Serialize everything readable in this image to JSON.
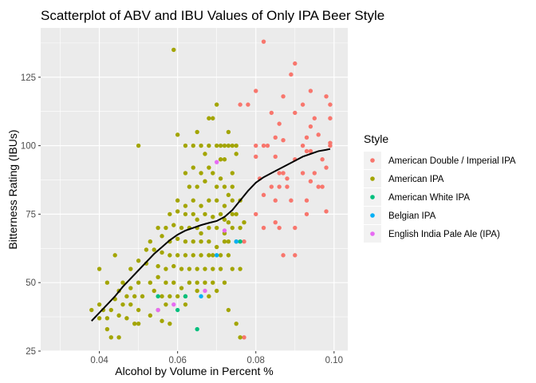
{
  "chart_data": {
    "type": "scatter",
    "title": "Scatterplot of ABV and IBU Values of Only IPA Beer Style",
    "xlabel": "Alcohol by Volume in Percent %",
    "ylabel": "Bitterness Rating (IBUs)",
    "xlim": [
      0.025,
      0.1035
    ],
    "ylim": [
      25,
      143
    ],
    "x_ticks": [
      0.04,
      0.06,
      0.08,
      0.1
    ],
    "x_tick_labels": [
      "0.04",
      "0.06",
      "0.08",
      "0.10"
    ],
    "y_ticks": [
      25,
      50,
      75,
      100,
      125
    ],
    "y_tick_labels": [
      "25",
      "50",
      "75",
      "100",
      "125"
    ],
    "grid": true,
    "legend": {
      "title": "Style",
      "position": "right",
      "entries": [
        {
          "label": "American Double / Imperial IPA",
          "color": "#F8766D"
        },
        {
          "label": "American IPA",
          "color": "#A3A500"
        },
        {
          "label": "American White IPA",
          "color": "#00BF7D"
        },
        {
          "label": "Belgian IPA",
          "color": "#00B0F6"
        },
        {
          "label": "English India Pale Ale (IPA)",
          "color": "#E76BF3"
        }
      ]
    },
    "series": [
      {
        "name": "American Double / Imperial IPA",
        "color": "#F8766D",
        "points": [
          [
            0.082,
            138
          ],
          [
            0.09,
            130
          ],
          [
            0.089,
            126
          ],
          [
            0.08,
            120
          ],
          [
            0.087,
            118
          ],
          [
            0.094,
            120
          ],
          [
            0.076,
            115
          ],
          [
            0.078,
            115
          ],
          [
            0.092,
            115
          ],
          [
            0.098,
            118
          ],
          [
            0.099,
            115
          ],
          [
            0.084,
            112
          ],
          [
            0.09,
            112
          ],
          [
            0.095,
            110
          ],
          [
            0.094,
            107
          ],
          [
            0.086,
            108
          ],
          [
            0.099,
            110
          ],
          [
            0.085,
            103
          ],
          [
            0.087,
            102
          ],
          [
            0.093,
            103
          ],
          [
            0.096,
            104
          ],
          [
            0.08,
            100
          ],
          [
            0.082,
            100
          ],
          [
            0.083,
            100
          ],
          [
            0.092,
            100
          ],
          [
            0.093,
            98
          ],
          [
            0.099,
            100
          ],
          [
            0.099,
            101
          ],
          [
            0.08,
            96
          ],
          [
            0.085,
            96
          ],
          [
            0.09,
            95
          ],
          [
            0.094,
            98
          ],
          [
            0.097,
            95
          ],
          [
            0.098,
            92
          ],
          [
            0.086,
            90
          ],
          [
            0.087,
            90
          ],
          [
            0.092,
            90
          ],
          [
            0.095,
            90
          ],
          [
            0.081,
            88
          ],
          [
            0.088,
            88
          ],
          [
            0.094,
            87
          ],
          [
            0.084,
            85
          ],
          [
            0.086,
            85
          ],
          [
            0.088,
            85
          ],
          [
            0.096,
            85
          ],
          [
            0.097,
            85
          ],
          [
            0.082,
            82
          ],
          [
            0.085,
            80
          ],
          [
            0.089,
            80
          ],
          [
            0.093,
            80
          ],
          [
            0.08,
            75
          ],
          [
            0.085,
            72
          ],
          [
            0.093,
            75
          ],
          [
            0.098,
            76
          ],
          [
            0.082,
            70
          ],
          [
            0.086,
            70
          ],
          [
            0.09,
            70
          ],
          [
            0.077,
            65
          ],
          [
            0.087,
            60
          ],
          [
            0.09,
            60
          ],
          [
            0.077,
            30
          ]
        ]
      },
      {
        "name": "American IPA",
        "color": "#A3A500",
        "points": [
          [
            0.059,
            135
          ],
          [
            0.05,
            100
          ],
          [
            0.06,
            104
          ],
          [
            0.062,
            100
          ],
          [
            0.064,
            100
          ],
          [
            0.066,
            100
          ],
          [
            0.068,
            100
          ],
          [
            0.07,
            100
          ],
          [
            0.071,
            100
          ],
          [
            0.072,
            100
          ],
          [
            0.073,
            100
          ],
          [
            0.074,
            100
          ],
          [
            0.075,
            100
          ],
          [
            0.07,
            115
          ],
          [
            0.068,
            110
          ],
          [
            0.069,
            110
          ],
          [
            0.065,
            105
          ],
          [
            0.073,
            105
          ],
          [
            0.067,
            97
          ],
          [
            0.071,
            95
          ],
          [
            0.072,
            95
          ],
          [
            0.075,
            97
          ],
          [
            0.062,
            90
          ],
          [
            0.064,
            92
          ],
          [
            0.066,
            90
          ],
          [
            0.068,
            92
          ],
          [
            0.069,
            90
          ],
          [
            0.071,
            88
          ],
          [
            0.074,
            90
          ],
          [
            0.063,
            85
          ],
          [
            0.065,
            85
          ],
          [
            0.067,
            87
          ],
          [
            0.07,
            85
          ],
          [
            0.072,
            85
          ],
          [
            0.073,
            82
          ],
          [
            0.074,
            85
          ],
          [
            0.06,
            80
          ],
          [
            0.062,
            78
          ],
          [
            0.064,
            80
          ],
          [
            0.066,
            78
          ],
          [
            0.068,
            80
          ],
          [
            0.07,
            80
          ],
          [
            0.072,
            78
          ],
          [
            0.074,
            80
          ],
          [
            0.076,
            80
          ],
          [
            0.058,
            75
          ],
          [
            0.06,
            76
          ],
          [
            0.062,
            75
          ],
          [
            0.064,
            75
          ],
          [
            0.065,
            73
          ],
          [
            0.067,
            75
          ],
          [
            0.069,
            74
          ],
          [
            0.071,
            75
          ],
          [
            0.072,
            73
          ],
          [
            0.073,
            72
          ],
          [
            0.074,
            75
          ],
          [
            0.075,
            75
          ],
          [
            0.077,
            72
          ],
          [
            0.055,
            70
          ],
          [
            0.057,
            70
          ],
          [
            0.059,
            71
          ],
          [
            0.061,
            70
          ],
          [
            0.063,
            70
          ],
          [
            0.065,
            70
          ],
          [
            0.066,
            68
          ],
          [
            0.068,
            70
          ],
          [
            0.07,
            70
          ],
          [
            0.072,
            68
          ],
          [
            0.074,
            70
          ],
          [
            0.076,
            70
          ],
          [
            0.053,
            65
          ],
          [
            0.056,
            67
          ],
          [
            0.058,
            65
          ],
          [
            0.06,
            66
          ],
          [
            0.062,
            65
          ],
          [
            0.064,
            65
          ],
          [
            0.066,
            65
          ],
          [
            0.068,
            65
          ],
          [
            0.07,
            63
          ],
          [
            0.072,
            65
          ],
          [
            0.073,
            65
          ],
          [
            0.075,
            65
          ],
          [
            0.052,
            62
          ],
          [
            0.054,
            62
          ],
          [
            0.056,
            61
          ],
          [
            0.058,
            60
          ],
          [
            0.06,
            60
          ],
          [
            0.062,
            60
          ],
          [
            0.064,
            60
          ],
          [
            0.066,
            60
          ],
          [
            0.068,
            60
          ],
          [
            0.069,
            60
          ],
          [
            0.071,
            60
          ],
          [
            0.073,
            60
          ],
          [
            0.048,
            55
          ],
          [
            0.05,
            58
          ],
          [
            0.052,
            57
          ],
          [
            0.055,
            56
          ],
          [
            0.057,
            55
          ],
          [
            0.059,
            56
          ],
          [
            0.061,
            55
          ],
          [
            0.063,
            55
          ],
          [
            0.065,
            55
          ],
          [
            0.067,
            55
          ],
          [
            0.069,
            55
          ],
          [
            0.071,
            55
          ],
          [
            0.04,
            55
          ],
          [
            0.044,
            60
          ],
          [
            0.042,
            50
          ],
          [
            0.046,
            50
          ],
          [
            0.048,
            48
          ],
          [
            0.05,
            50
          ],
          [
            0.053,
            50
          ],
          [
            0.055,
            52
          ],
          [
            0.057,
            50
          ],
          [
            0.059,
            50
          ],
          [
            0.061,
            48
          ],
          [
            0.063,
            50
          ],
          [
            0.065,
            50
          ],
          [
            0.067,
            50
          ],
          [
            0.069,
            50
          ],
          [
            0.072,
            50
          ],
          [
            0.074,
            55
          ],
          [
            0.076,
            55
          ],
          [
            0.045,
            47
          ],
          [
            0.047,
            45
          ],
          [
            0.049,
            45
          ],
          [
            0.051,
            45
          ],
          [
            0.054,
            47
          ],
          [
            0.056,
            45
          ],
          [
            0.058,
            45
          ],
          [
            0.06,
            45
          ],
          [
            0.062,
            45
          ],
          [
            0.068,
            45
          ],
          [
            0.038,
            40
          ],
          [
            0.04,
            42
          ],
          [
            0.041,
            40
          ],
          [
            0.043,
            40
          ],
          [
            0.044,
            44
          ],
          [
            0.046,
            42
          ],
          [
            0.048,
            42
          ],
          [
            0.05,
            40
          ],
          [
            0.055,
            40
          ],
          [
            0.057,
            42
          ],
          [
            0.04,
            37
          ],
          [
            0.042,
            37
          ],
          [
            0.045,
            38
          ],
          [
            0.047,
            37
          ],
          [
            0.049,
            35
          ],
          [
            0.05,
            35
          ],
          [
            0.053,
            38
          ],
          [
            0.056,
            36
          ],
          [
            0.058,
            35
          ],
          [
            0.042,
            33
          ],
          [
            0.043,
            30
          ],
          [
            0.045,
            30
          ],
          [
            0.073,
            40
          ],
          [
            0.075,
            35
          ],
          [
            0.076,
            30
          ],
          [
            0.065,
            47
          ],
          [
            0.07,
            47
          ],
          [
            0.062,
            42
          ]
        ]
      },
      {
        "name": "American White IPA",
        "color": "#00BF7D",
        "points": [
          [
            0.055,
            45
          ],
          [
            0.062,
            45
          ],
          [
            0.06,
            40
          ],
          [
            0.065,
            33
          ],
          [
            0.076,
            65
          ]
        ]
      },
      {
        "name": "Belgian IPA",
        "color": "#00B0F6",
        "points": [
          [
            0.075,
            65
          ],
          [
            0.07,
            60
          ],
          [
            0.066,
            45
          ]
        ]
      },
      {
        "name": "English India Pale Ale (IPA)",
        "color": "#E76BF3",
        "points": [
          [
            0.07,
            94
          ],
          [
            0.072,
            69
          ],
          [
            0.067,
            47
          ],
          [
            0.059,
            42
          ],
          [
            0.055,
            40
          ]
        ]
      }
    ],
    "trend": {
      "type": "loess",
      "color": "#000000",
      "points": [
        [
          0.038,
          36
        ],
        [
          0.04,
          39
        ],
        [
          0.042,
          42
        ],
        [
          0.044,
          45
        ],
        [
          0.046,
          48.5
        ],
        [
          0.048,
          51.5
        ],
        [
          0.05,
          54.5
        ],
        [
          0.052,
          57.5
        ],
        [
          0.054,
          60.5
        ],
        [
          0.056,
          63
        ],
        [
          0.058,
          65.5
        ],
        [
          0.06,
          67.5
        ],
        [
          0.062,
          69
        ],
        [
          0.064,
          70
        ],
        [
          0.066,
          71
        ],
        [
          0.068,
          71.8
        ],
        [
          0.07,
          72.5
        ],
        [
          0.072,
          74
        ],
        [
          0.074,
          76.5
        ],
        [
          0.076,
          80
        ],
        [
          0.078,
          83.5
        ],
        [
          0.08,
          86.5
        ],
        [
          0.082,
          88.5
        ],
        [
          0.084,
          90
        ],
        [
          0.086,
          91.5
        ],
        [
          0.088,
          93
        ],
        [
          0.09,
          94.5
        ],
        [
          0.092,
          96
        ],
        [
          0.094,
          97
        ],
        [
          0.096,
          98
        ],
        [
          0.098,
          98.5
        ],
        [
          0.099,
          98.8
        ]
      ]
    }
  }
}
